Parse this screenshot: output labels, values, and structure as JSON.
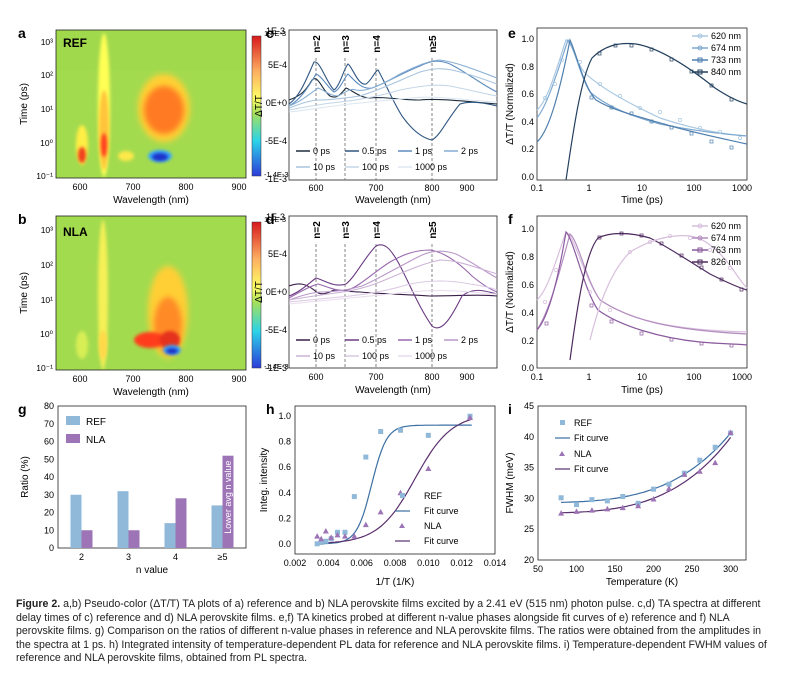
{
  "panels": {
    "a": {
      "letter": "a",
      "tag": "REF",
      "xlabel": "Wavelength (nm)",
      "ylabel": "Time (ps)",
      "xticks": [
        "600",
        "700",
        "800",
        "900"
      ],
      "yticks": [
        "10³",
        "10²",
        "10¹",
        "10⁰",
        "10⁻¹"
      ],
      "cbar": {
        "max": "1.4E-3",
        "min": "-1.4E-3"
      }
    },
    "b": {
      "letter": "b",
      "tag": "NLA",
      "xlabel": "Wavelength (nm)",
      "ylabel": "Time (ps)",
      "xticks": [
        "600",
        "700",
        "800",
        "900"
      ],
      "yticks": [
        "10³",
        "10²",
        "10¹",
        "10⁰",
        "10⁻¹"
      ],
      "cbar": {
        "max": "1.4E-3",
        "min": "-1.4E-3"
      }
    },
    "c": {
      "letter": "c",
      "xlabel": "Wavelength (nm)",
      "ylabel": "ΔT/T",
      "top": "1E-3",
      "yticks": [
        "5E-4",
        "0E+0",
        "-5E-4",
        "-1E-3"
      ],
      "xticks": [
        "600",
        "700",
        "800",
        "900"
      ],
      "nlabels": [
        "n=2",
        "n=3",
        "n=4",
        "n≥5"
      ],
      "legend": [
        "0 ps",
        "0.5 ps",
        "1 ps",
        "2 ps",
        "10 ps",
        "100 ps",
        "1000 ps"
      ]
    },
    "d": {
      "letter": "d",
      "xlabel": "Wavelength (nm)",
      "ylabel": "ΔT/T",
      "top": "1E-3",
      "yticks": [
        "5E-4",
        "0E+0",
        "-5E-4",
        "-1E-3"
      ],
      "xticks": [
        "600",
        "700",
        "800",
        "900"
      ],
      "nlabels": [
        "n=2",
        "n=3",
        "n=4",
        "n≥5"
      ],
      "legend": [
        "0 ps",
        "0.5 ps",
        "1 ps",
        "2 ps",
        "10 ps",
        "100 ps",
        "1000 ps"
      ]
    },
    "e": {
      "letter": "e",
      "xlabel": "Time (ps)",
      "ylabel": "ΔT/T (Normalized)",
      "xticks": [
        "0.1",
        "1",
        "10",
        "100",
        "1000"
      ],
      "yticks": [
        "1.0",
        "0.8",
        "0.6",
        "0.4",
        "0.2",
        "0.0"
      ],
      "legend": [
        "620 nm",
        "674 nm",
        "733 nm",
        "840 nm"
      ],
      "colors": [
        "#a9c8e2",
        "#7fa9cf",
        "#4f7fae",
        "#23405e"
      ]
    },
    "f": {
      "letter": "f",
      "xlabel": "Time (ps)",
      "ylabel": "ΔT/T (Normalized)",
      "xticks": [
        "0.1",
        "1",
        "10",
        "100",
        "1000"
      ],
      "yticks": [
        "1.0",
        "0.8",
        "0.6",
        "0.4",
        "0.2",
        "0.0"
      ],
      "legend": [
        "620 nm",
        "674 nm",
        "763 nm",
        "826 nm"
      ],
      "colors": [
        "#d7bfdc",
        "#b48ec0",
        "#8b5a9e",
        "#4e2b5e"
      ]
    },
    "g": {
      "letter": "g",
      "ylabel": "Ratio (%)",
      "xlabel": "n value",
      "legend": [
        "REF",
        "NLA"
      ],
      "annotation": "Lower avg n value",
      "yticks": [
        "0",
        "10",
        "20",
        "30",
        "40",
        "50",
        "60",
        "70",
        "80"
      ]
    },
    "h": {
      "letter": "h",
      "ylabel": "Integ. intensity",
      "xlabel": "1/T (1/K)",
      "legend": [
        "REF",
        "Fit curve",
        "NLA",
        "Fit curve"
      ],
      "xticks": [
        "0.002",
        "0.004",
        "0.006",
        "0.008",
        "0.010",
        "0.012",
        "0.014"
      ],
      "yticks": [
        "0.0",
        "0.2",
        "0.4",
        "0.6",
        "0.8",
        "1.0"
      ]
    },
    "i": {
      "letter": "i",
      "ylabel": "FWHM (meV)",
      "xlabel": "Temperature (K)",
      "legend": [
        "REF",
        "Fit curve",
        "NLA",
        "Fit curve"
      ],
      "xticks": [
        "50",
        "100",
        "150",
        "200",
        "250",
        "300"
      ],
      "yticks": [
        "20",
        "25",
        "30",
        "35",
        "40",
        "45"
      ]
    }
  },
  "chart_data": [
    {
      "type": "bar",
      "id": "g",
      "title": "",
      "xlabel": "n value",
      "ylabel": "Ratio (%)",
      "ylim": [
        0,
        80
      ],
      "categories": [
        "2",
        "3",
        "4",
        "≥5"
      ],
      "series": [
        {
          "name": "REF",
          "values": [
            30,
            32,
            14,
            24
          ]
        },
        {
          "name": "NLA",
          "values": [
            10,
            10,
            28,
            52
          ]
        }
      ]
    },
    {
      "type": "scatter",
      "id": "h",
      "xlabel": "1/T (1/K)",
      "ylabel": "Integ. intensity",
      "xlim": [
        0.002,
        0.014
      ],
      "ylim": [
        -0.08,
        1.08
      ],
      "series": [
        {
          "name": "REF",
          "x": [
            0.00333,
            0.00357,
            0.00385,
            0.00417,
            0.00455,
            0.005,
            0.00556,
            0.00625,
            0.00714,
            0.00833,
            0.01,
            0.0125
          ],
          "y": [
            0.0,
            0.01,
            0.02,
            0.04,
            0.09,
            0.09,
            0.37,
            0.68,
            0.88,
            0.89,
            0.85,
            1.0
          ]
        },
        {
          "name": "NLA",
          "x": [
            0.00333,
            0.00357,
            0.00385,
            0.00417,
            0.00455,
            0.005,
            0.00556,
            0.00625,
            0.00714,
            0.00833,
            0.01,
            0.0125
          ],
          "y": [
            0.06,
            0.04,
            0.1,
            0.05,
            0.07,
            0.06,
            0.06,
            0.15,
            0.25,
            0.4,
            0.59,
            0.99
          ]
        }
      ]
    },
    {
      "type": "scatter",
      "id": "i",
      "xlabel": "Temperature (K)",
      "ylabel": "FWHM (meV)",
      "xlim": [
        50,
        320
      ],
      "ylim": [
        20,
        45
      ],
      "series": [
        {
          "name": "REF",
          "x": [
            80,
            100,
            120,
            140,
            160,
            180,
            200,
            220,
            240,
            260,
            280,
            300
          ],
          "y": [
            30.1,
            29.0,
            29.8,
            29.6,
            30.3,
            29.2,
            31.5,
            32.3,
            34.1,
            36.2,
            38.3,
            40.6
          ]
        },
        {
          "name": "NLA",
          "x": [
            80,
            100,
            120,
            140,
            160,
            180,
            200,
            220,
            240,
            260,
            280,
            300
          ],
          "y": [
            27.6,
            27.9,
            28.1,
            28.3,
            28.5,
            28.8,
            29.9,
            31.6,
            33.9,
            34.4,
            35.8,
            40.7
          ]
        }
      ]
    }
  ],
  "caption": {
    "label": "Figure 2.",
    "text": " a,b) Pseudo-color (ΔT/T) TA plots of a) reference and b) NLA perovskite films excited by a 2.41 eV (515 nm) photon pulse. c,d) TA spectra at different delay times of c) reference and d) NLA perovskite films. e,f) TA kinetics probed at different n-value phases alongside fit curves of e) reference and f) NLA perovskite films. g) Comparison on the ratios of different n-value phases in reference and NLA perovskite films. The ratios were obtained from the amplitudes in the spectra at 1 ps. h) Integrated intensity of temperature-dependent PL data for reference and NLA perovskite films. i) Temperature-dependent FWHM values of reference and NLA perovskite films, obtained from PL spectra."
  },
  "colors": {
    "ref": "#8fb8d9",
    "nla": "#9d74b5",
    "refLine": "#3b6fa3",
    "nlaLine": "#5a2f6e"
  }
}
